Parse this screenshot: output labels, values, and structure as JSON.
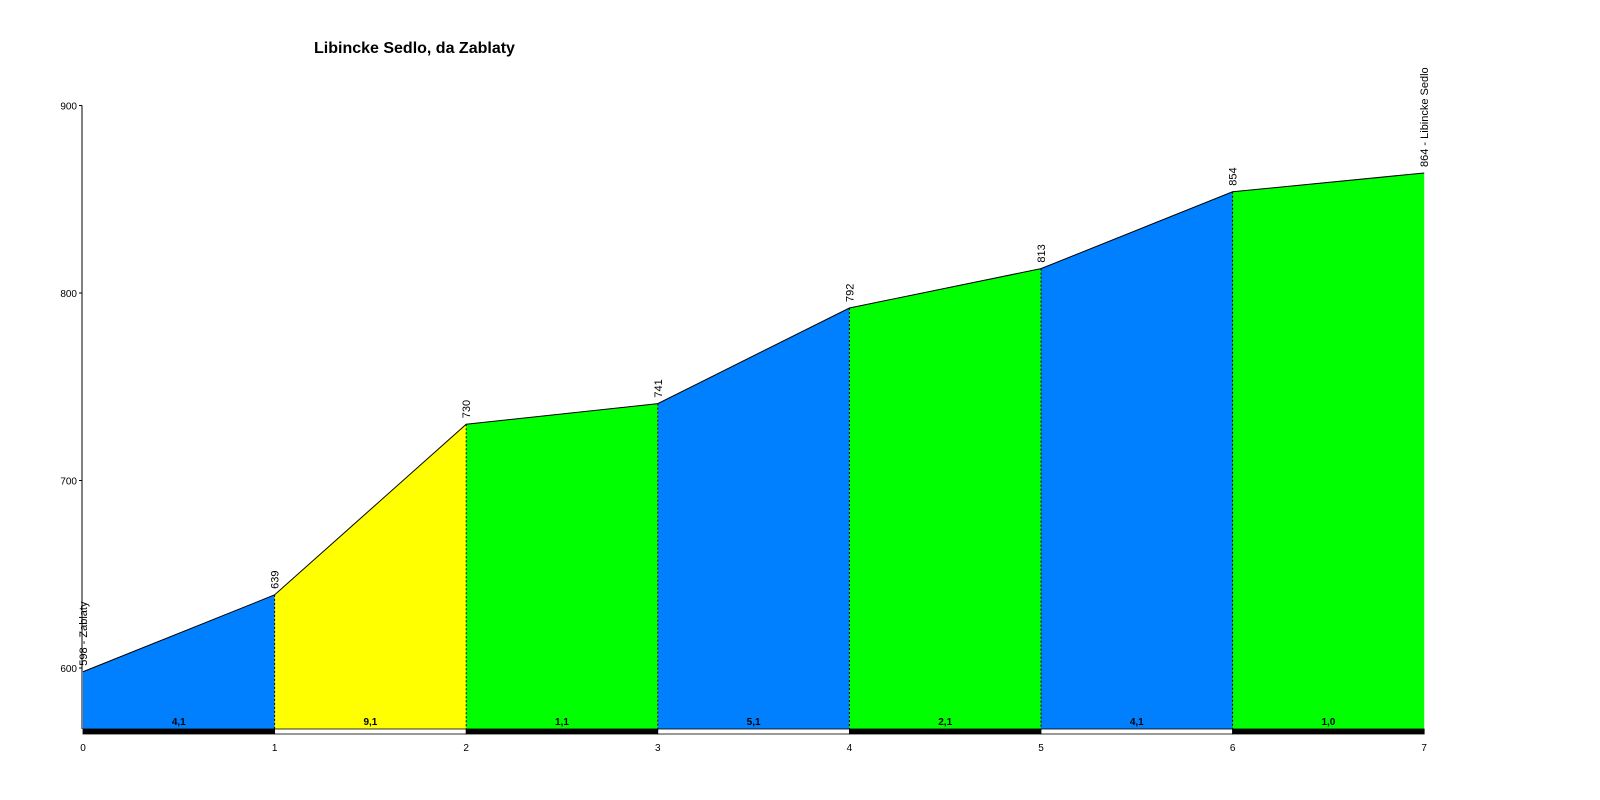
{
  "chart_data": {
    "type": "area",
    "title": "Libincke Sedlo, da Zablaty",
    "xlabel": "",
    "ylabel": "",
    "xlim": [
      0,
      7
    ],
    "ylim": [
      568,
      900
    ],
    "x_ticks": [
      "0",
      "1",
      "2",
      "3",
      "4",
      "5",
      "6",
      "7"
    ],
    "y_ticks": [
      "600",
      "700",
      "800",
      "900"
    ],
    "grid": false,
    "points": [
      {
        "x": 0,
        "y": 598,
        "label": "598 - Zablaty"
      },
      {
        "x": 1,
        "y": 639,
        "label": "639"
      },
      {
        "x": 2,
        "y": 730,
        "label": "730"
      },
      {
        "x": 3,
        "y": 741,
        "label": "741"
      },
      {
        "x": 4,
        "y": 792,
        "label": "792"
      },
      {
        "x": 5,
        "y": 813,
        "label": "813"
      },
      {
        "x": 6,
        "y": 854,
        "label": "854"
      },
      {
        "x": 7,
        "y": 864,
        "label": "864 - Libincke Sedlo"
      }
    ],
    "segments": [
      {
        "gradient": "4,1",
        "color": "#0080ff"
      },
      {
        "gradient": "9,1",
        "color": "#ffff00"
      },
      {
        "gradient": "1,1",
        "color": "#00ff00"
      },
      {
        "gradient": "5,1",
        "color": "#0080ff"
      },
      {
        "gradient": "2,1",
        "color": "#00ff00"
      },
      {
        "gradient": "4,1",
        "color": "#0080ff"
      },
      {
        "gradient": "1,0",
        "color": "#00ff00"
      }
    ]
  }
}
